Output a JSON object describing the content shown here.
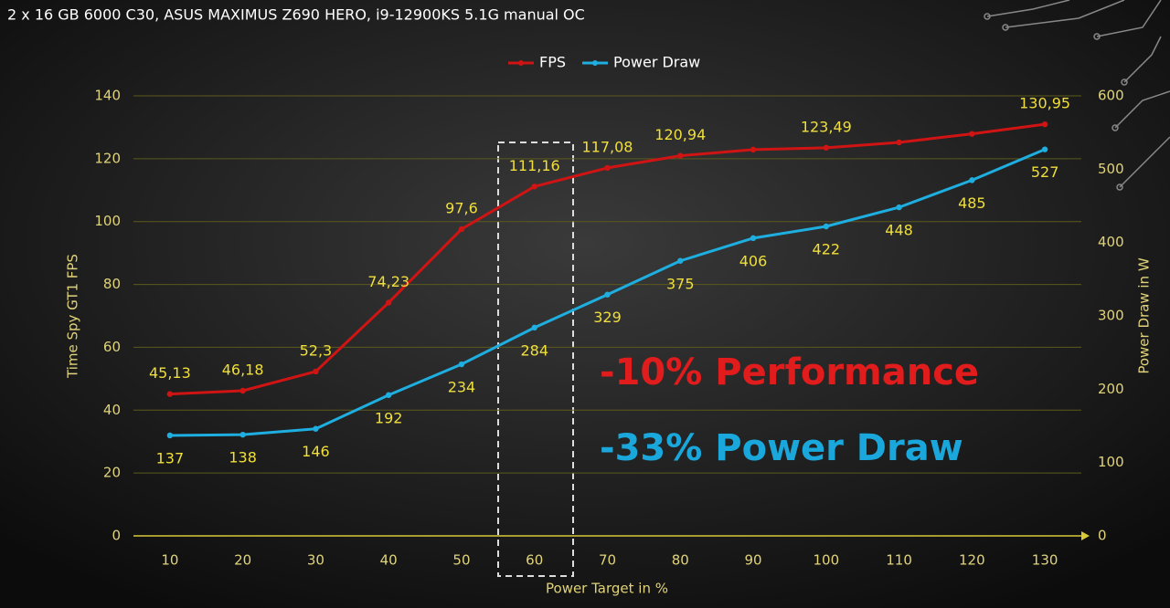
{
  "chart_data": {
    "type": "line",
    "title": "2 x 16 GB 6000 C30, ASUS MAXIMUS Z690 HERO, i9-12900KS 5.1G manual OC",
    "categories": [
      "10",
      "20",
      "30",
      "40",
      "50",
      "60",
      "70",
      "80",
      "90",
      "100",
      "110",
      "120",
      "130"
    ],
    "series": [
      {
        "name": "FPS",
        "color": "#d01414",
        "axis": "y",
        "values": [
          45.13,
          46.18,
          52.3,
          74.23,
          97.6,
          111.16,
          117.08,
          120.94,
          122.9,
          123.49,
          125.2,
          127.9,
          130.95
        ],
        "value_labels": [
          "45,13",
          "46,18",
          "52,3",
          "74,23",
          "97,6",
          "111,16",
          "117,08",
          "120,94",
          null,
          "123,49",
          null,
          null,
          "130,95"
        ]
      },
      {
        "name": "Power Draw",
        "color": "#1eaee0",
        "axis": "y2",
        "values": [
          137,
          138,
          146,
          192,
          234,
          284,
          329,
          375,
          406,
          422,
          448,
          485,
          527
        ]
      }
    ],
    "xlabel": "Power Target in %",
    "ylabel": "Time Spy GT1 FPS",
    "y2label": "Power Draw in W",
    "ylim": [
      0,
      140
    ],
    "yticks": [
      0,
      20,
      40,
      60,
      80,
      100,
      120,
      140
    ],
    "y2lim": [
      0,
      600
    ],
    "y2ticks": [
      0,
      100,
      200,
      300,
      400,
      500,
      600
    ],
    "grid": true,
    "legend": "top",
    "annotations": [
      {
        "text": "-10% Performance",
        "color": "#e01c1c"
      },
      {
        "text": "-33% Power Draw",
        "color": "#1aa8dc"
      }
    ]
  }
}
